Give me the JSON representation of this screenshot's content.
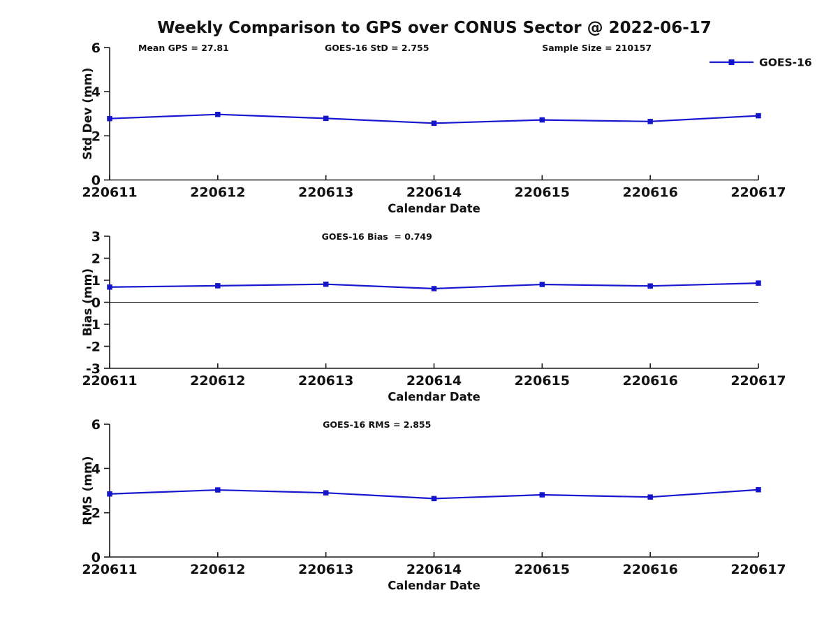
{
  "title": "Weekly Comparison to GPS over CONUS Sector @ 2022-06-17",
  "legend": {
    "label": "GOES-16"
  },
  "colors": {
    "line": "#1717cf",
    "marker": "#1414c8",
    "axis": "#1a1a1a",
    "text": "#111111",
    "zero_line": "#1a1a1a",
    "background": "#ffffff"
  },
  "chart_data": [
    {
      "type": "line",
      "title": "",
      "categories": [
        "220611",
        "220612",
        "220613",
        "220614",
        "220615",
        "220616",
        "220617"
      ],
      "series": [
        {
          "name": "GOES-16",
          "values": [
            2.78,
            2.97,
            2.79,
            2.57,
            2.72,
            2.65,
            2.91
          ]
        }
      ],
      "xlabel": "Calendar Date",
      "ylabel": "Std Dev (mm)",
      "ylim": [
        0,
        6
      ],
      "yticks": [
        0,
        2,
        4,
        6
      ],
      "ytick_labels": [
        "0",
        "2",
        "4",
        "6"
      ],
      "annotations": [
        "Mean GPS = 27.81",
        "GOES-16 StD = 2.755",
        "Sample Size = 210157"
      ],
      "grid": false,
      "zero_line": false,
      "legend": {
        "show": true,
        "label": "GOES-16",
        "position": "northeast"
      }
    },
    {
      "type": "line",
      "title": "",
      "categories": [
        "220611",
        "220612",
        "220613",
        "220614",
        "220615",
        "220616",
        "220617"
      ],
      "series": [
        {
          "name": "GOES-16",
          "values": [
            0.69,
            0.75,
            0.82,
            0.62,
            0.81,
            0.74,
            0.87
          ]
        }
      ],
      "xlabel": "Calendar Date",
      "ylabel": "Bias (mm)",
      "ylim": [
        -3,
        3
      ],
      "yticks": [
        -3,
        -2,
        -1,
        0,
        1,
        2,
        3
      ],
      "ytick_labels": [
        "-3",
        "-2",
        "-1",
        "0",
        "1",
        "2",
        "3"
      ],
      "annotations": [
        "GOES-16 Bias  = 0.749"
      ],
      "grid": false,
      "zero_line": true,
      "legend": {
        "show": false
      }
    },
    {
      "type": "line",
      "title": "",
      "categories": [
        "220611",
        "220612",
        "220613",
        "220614",
        "220615",
        "220616",
        "220617"
      ],
      "series": [
        {
          "name": "GOES-16",
          "values": [
            2.85,
            3.03,
            2.9,
            2.64,
            2.81,
            2.71,
            3.04
          ]
        }
      ],
      "xlabel": "Calendar Date",
      "ylabel": "RMS (mm)",
      "ylim": [
        0,
        6
      ],
      "yticks": [
        0,
        2,
        4,
        6
      ],
      "ytick_labels": [
        "0",
        "2",
        "4",
        "6"
      ],
      "annotations": [
        "GOES-16 RMS = 2.855"
      ],
      "grid": false,
      "zero_line": false,
      "legend": {
        "show": false
      }
    }
  ]
}
